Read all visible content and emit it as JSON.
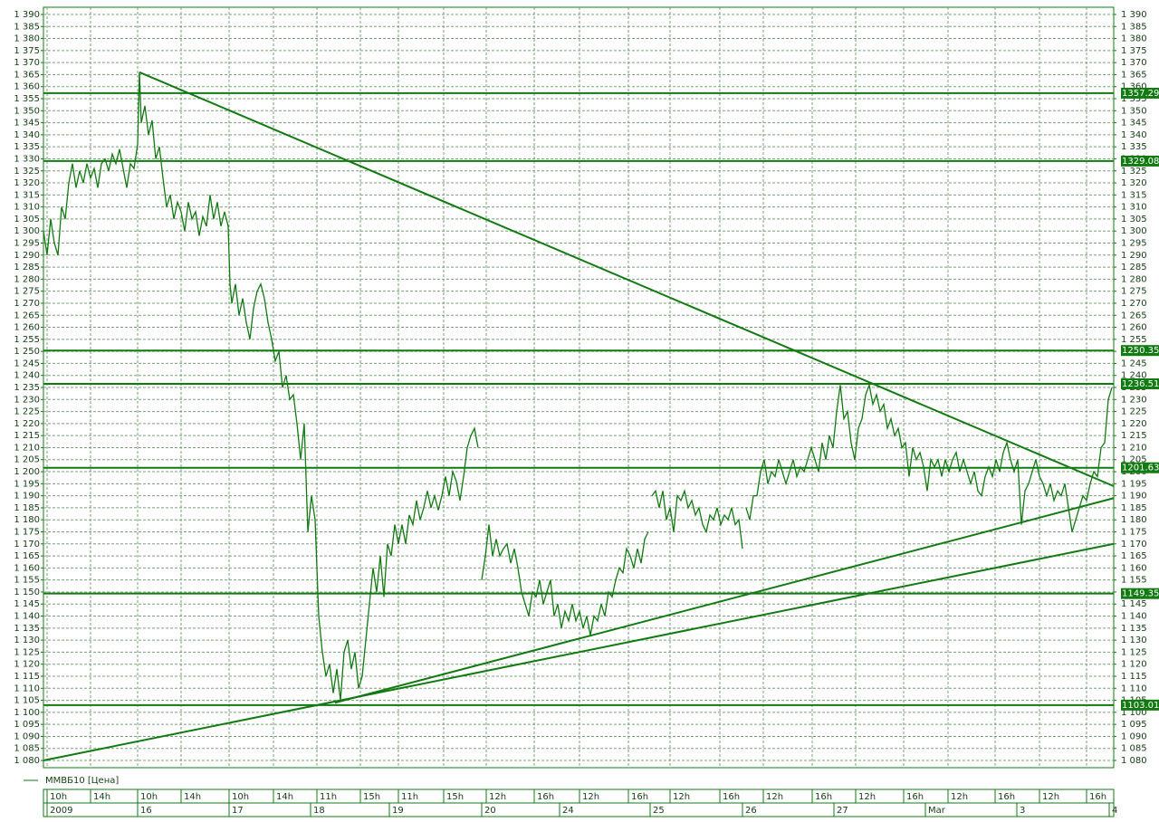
{
  "chart_data": {
    "type": "line",
    "color": "#117a11",
    "grid": true,
    "series": [
      {
        "name": "ММВБ10 [Цена]",
        "color": "#117a11",
        "x": [
          0,
          1,
          2,
          3,
          4,
          5,
          6,
          7,
          8,
          9,
          10,
          11,
          12,
          13,
          14,
          15,
          16,
          17,
          18,
          19,
          20,
          21,
          22,
          23,
          24,
          25,
          26,
          26.5,
          27,
          28,
          29,
          30,
          31,
          32,
          33,
          34,
          35,
          36,
          37,
          38,
          39,
          40,
          41,
          42,
          43,
          44,
          45,
          46,
          47,
          48,
          49,
          50,
          51,
          51.5,
          52,
          53,
          54,
          55,
          56,
          57,
          58,
          59,
          60,
          61,
          62,
          63,
          64,
          65,
          66,
          67,
          68,
          69,
          70,
          71,
          72,
          73,
          74,
          75,
          76,
          77,
          78,
          79,
          80,
          81,
          82,
          83,
          84,
          85,
          86,
          87,
          88,
          89,
          90,
          91,
          92,
          93,
          94,
          95,
          96,
          97,
          98,
          99,
          100,
          101,
          102,
          103,
          104,
          105,
          106,
          107,
          108,
          109,
          110,
          111,
          112,
          113,
          114,
          115,
          116,
          117,
          118,
          119,
          120,
          120.5,
          121,
          122,
          123,
          124,
          125,
          126,
          127,
          128,
          129,
          130,
          131,
          132,
          133,
          134,
          135,
          136,
          137,
          138,
          139,
          140,
          141,
          142,
          143,
          144,
          145,
          146,
          147,
          148,
          149,
          150,
          151,
          152,
          153,
          154,
          155,
          156,
          157,
          158,
          159,
          160,
          161,
          162,
          163,
          164,
          165,
          166,
          167,
          167.5,
          168,
          169,
          170,
          171,
          172,
          173,
          174,
          175,
          176,
          177,
          178,
          179,
          180,
          181,
          182,
          183,
          184,
          185,
          186,
          187,
          188,
          189,
          190,
          191,
          192,
          193,
          193.5,
          194,
          195,
          196,
          197,
          198,
          199,
          200,
          201,
          202,
          203,
          204,
          205,
          206,
          207,
          208,
          209,
          210,
          211,
          212,
          213,
          214,
          215,
          216,
          217,
          218,
          219,
          220,
          221,
          222,
          223,
          224,
          225,
          226,
          227,
          228,
          229,
          230,
          231,
          232,
          233,
          234,
          235,
          236,
          237,
          238,
          239,
          240,
          241,
          242,
          243,
          244,
          245,
          246,
          247,
          248,
          249,
          250,
          251,
          252,
          253,
          254,
          255,
          256,
          257,
          258,
          259,
          260,
          261,
          262,
          263,
          264,
          265,
          266,
          267,
          268,
          269,
          270,
          271,
          272,
          273,
          274,
          275,
          276,
          277,
          278,
          279,
          280,
          281,
          282,
          283,
          284,
          285,
          286,
          287,
          288,
          289,
          290,
          291,
          292,
          293,
          294,
          295
        ],
        "values": [
          1300,
          1290,
          1305,
          1295,
          1290,
          1310,
          1305,
          1320,
          1328,
          1318,
          1325,
          1320,
          1328,
          1322,
          1326,
          1318,
          1328,
          1330,
          1325,
          1332,
          1328,
          1334,
          1326,
          1318,
          1328,
          1326,
          1336,
          1366,
          1345,
          1352,
          1340,
          1346,
          1330,
          1335,
          1322,
          1310,
          1315,
          1305,
          1312,
          1308,
          1300,
          1312,
          1305,
          1308,
          1298,
          1306,
          1302,
          1315,
          1305,
          1312,
          1302,
          1308,
          1302,
          1278,
          1270,
          1278,
          1265,
          1272,
          1262,
          1255,
          1268,
          1275,
          1278,
          1272,
          1262,
          1255,
          1246,
          1250,
          1235,
          1240,
          1230,
          1232,
          1220,
          1205,
          1220,
          1175,
          1190,
          1180,
          1140,
          1125,
          1115,
          1120,
          1108,
          1118,
          1105,
          1125,
          1130,
          1118,
          1125,
          1110,
          1115,
          1130,
          1145,
          1160,
          1150,
          1165,
          1148,
          1170,
          1165,
          1178,
          1170,
          1178,
          1170,
          1182,
          1178,
          1188,
          1180,
          1185,
          1192,
          1185,
          1190,
          1184,
          1190,
          1198,
          1190,
          1200,
          1196,
          1188,
          1198,
          1210,
          1215,
          1218,
          1210,
          null,
          1155,
          1165,
          1178,
          1165,
          1172,
          1165,
          1168,
          1170,
          1162,
          1168,
          1160,
          1150,
          1145,
          1140,
          1150,
          1148,
          1155,
          1145,
          1150,
          1155,
          1140,
          1145,
          1135,
          1142,
          1138,
          1145,
          1138,
          1142,
          1135,
          1140,
          1132,
          1140,
          1138,
          1145,
          1140,
          1150,
          1148,
          1155,
          1160,
          1158,
          1168,
          1165,
          1160,
          1168,
          1162,
          1172,
          1175,
          null,
          1190,
          1192,
          1185,
          1192,
          1180,
          1185,
          1175,
          1190,
          1188,
          1192,
          1185,
          1188,
          1182,
          1185,
          1178,
          1175,
          1182,
          1180,
          1185,
          1178,
          1182,
          1180,
          1185,
          1178,
          1180,
          1168,
          null,
          1185,
          1180,
          1190,
          1190,
          1200,
          1205,
          1195,
          1200,
          1198,
          1205,
          1200,
          1195,
          1200,
          1205,
          1198,
          1202,
          1200,
          1205,
          1210,
          1205,
          1200,
          1212,
          1205,
          1215,
          1210,
          1225,
          1236,
          1222,
          1225,
          1212,
          1205,
          1218,
          1222,
          1232,
          1236,
          1228,
          1232,
          1225,
          1228,
          1218,
          1222,
          1215,
          1218,
          1210,
          1212,
          1198,
          1210,
          1205,
          1208,
          1202,
          1192,
          1205,
          1202,
          1205,
          1198,
          1205,
          1200,
          1205,
          1208,
          1200,
          1205,
          1200,
          1195,
          1200,
          1192,
          1190,
          1198,
          1202,
          1198,
          1205,
          1200,
          1208,
          1212,
          1205,
          1200,
          1205,
          1178,
          1192,
          1195,
          1200,
          1205,
          1198,
          1195,
          1190,
          1195,
          1188,
          1192,
          1190,
          1195,
          1185,
          1175,
          1180,
          1185,
          1190,
          1188,
          1195,
          1200,
          1198,
          1210,
          1212,
          1230,
          1235
        ]
      }
    ],
    "trendlines": [
      {
        "x": [
          26.5,
          295.5
        ],
        "y": [
          1366,
          1194
        ]
      },
      {
        "x": [
          0,
          295.5
        ],
        "y": [
          1080,
          1170
        ]
      },
      {
        "x": [
          80.5,
          295.5
        ],
        "y": [
          1104,
          1189
        ]
      }
    ],
    "levels": [
      1357.29,
      1329.08,
      1250.35,
      1236.51,
      1201.63,
      1149.35,
      1103.01
    ],
    "xlim": [
      0,
      295.5
    ],
    "ylim": [
      1077,
      1393
    ],
    "xticks": [
      {
        "value": 1,
        "label": "10h"
      },
      {
        "value": 13,
        "label": "14h"
      },
      {
        "value": 26,
        "label": "10h"
      },
      {
        "value": 38,
        "label": "14h"
      },
      {
        "value": 51.25,
        "label": "10h"
      },
      {
        "value": 63.5,
        "label": "14h"
      },
      {
        "value": 75.5,
        "label": "11h"
      },
      {
        "value": 87.5,
        "label": "15h"
      },
      {
        "value": 98,
        "label": "11h"
      },
      {
        "value": 110.5,
        "label": "15h"
      },
      {
        "value": 122.25,
        "label": "12h"
      },
      {
        "value": 135.5,
        "label": "16h"
      },
      {
        "value": 148,
        "label": "12h"
      },
      {
        "value": 161.5,
        "label": "16h"
      },
      {
        "value": 173,
        "label": "12h"
      },
      {
        "value": 186.75,
        "label": "16h"
      },
      {
        "value": 198.75,
        "label": "12h"
      },
      {
        "value": 212.25,
        "label": "16h"
      },
      {
        "value": 224.25,
        "label": "12h"
      },
      {
        "value": 237.5,
        "label": "16h"
      },
      {
        "value": 249.75,
        "label": "12h"
      },
      {
        "value": 262.75,
        "label": "16h"
      },
      {
        "value": 275,
        "label": "12h"
      },
      {
        "value": 288,
        "label": "16h"
      }
    ],
    "dateticks": [
      {
        "value": 1,
        "label": "2009"
      },
      {
        "value": 26,
        "label": "16"
      },
      {
        "value": 51.25,
        "label": "17"
      },
      {
        "value": 73.75,
        "label": "18"
      },
      {
        "value": 95.5,
        "label": "19"
      },
      {
        "value": 121,
        "label": "20"
      },
      {
        "value": 142.5,
        "label": "24"
      },
      {
        "value": 167.5,
        "label": "25"
      },
      {
        "value": 193,
        "label": "26"
      },
      {
        "value": 218.25,
        "label": "27"
      },
      {
        "value": 243.5,
        "label": "Mar"
      },
      {
        "value": 268.75,
        "label": "3"
      },
      {
        "value": 294.25,
        "label": "4"
      }
    ],
    "yticks": [
      {
        "value": 1080,
        "label": "1 080"
      },
      {
        "value": 1085,
        "label": "1 085"
      },
      {
        "value": 1090,
        "label": "1 090"
      },
      {
        "value": 1095,
        "label": "1 095"
      },
      {
        "value": 1100,
        "label": "1 100"
      },
      {
        "value": 1105,
        "label": "1 105"
      },
      {
        "value": 1110,
        "label": "1 110"
      },
      {
        "value": 1115,
        "label": "1 115"
      },
      {
        "value": 1120,
        "label": "1 120"
      },
      {
        "value": 1125,
        "label": "1 125"
      },
      {
        "value": 1130,
        "label": "1 130"
      },
      {
        "value": 1135,
        "label": "1 135"
      },
      {
        "value": 1140,
        "label": "1 140"
      },
      {
        "value": 1145,
        "label": "1 145"
      },
      {
        "value": 1150,
        "label": "1 150"
      },
      {
        "value": 1155,
        "label": "1 155"
      },
      {
        "value": 1160,
        "label": "1 160"
      },
      {
        "value": 1165,
        "label": "1 165"
      },
      {
        "value": 1170,
        "label": "1 170"
      },
      {
        "value": 1175,
        "label": "1 175"
      },
      {
        "value": 1180,
        "label": "1 180"
      },
      {
        "value": 1185,
        "label": "1 185"
      },
      {
        "value": 1190,
        "label": "1 190"
      },
      {
        "value": 1195,
        "label": "1 195"
      },
      {
        "value": 1200,
        "label": "1 200"
      },
      {
        "value": 1205,
        "label": "1 205"
      },
      {
        "value": 1210,
        "label": "1 210"
      },
      {
        "value": 1215,
        "label": "1 215"
      },
      {
        "value": 1220,
        "label": "1 220"
      },
      {
        "value": 1225,
        "label": "1 225"
      },
      {
        "value": 1230,
        "label": "1 230"
      },
      {
        "value": 1235,
        "label": "1 235"
      },
      {
        "value": 1240,
        "label": "1 240"
      },
      {
        "value": 1245,
        "label": "1 245"
      },
      {
        "value": 1250,
        "label": "1 250"
      },
      {
        "value": 1255,
        "label": "1 255"
      },
      {
        "value": 1260,
        "label": "1 260"
      },
      {
        "value": 1265,
        "label": "1 265"
      },
      {
        "value": 1270,
        "label": "1 270"
      },
      {
        "value": 1275,
        "label": "1 275"
      },
      {
        "value": 1280,
        "label": "1 280"
      },
      {
        "value": 1285,
        "label": "1 285"
      },
      {
        "value": 1290,
        "label": "1 290"
      },
      {
        "value": 1295,
        "label": "1 295"
      },
      {
        "value": 1300,
        "label": "1 300"
      },
      {
        "value": 1305,
        "label": "1 305"
      },
      {
        "value": 1310,
        "label": "1 310"
      },
      {
        "value": 1315,
        "label": "1 315"
      },
      {
        "value": 1320,
        "label": "1 320"
      },
      {
        "value": 1325,
        "label": "1 325"
      },
      {
        "value": 1330,
        "label": "1 330"
      },
      {
        "value": 1335,
        "label": "1 335"
      },
      {
        "value": 1340,
        "label": "1 340"
      },
      {
        "value": 1345,
        "label": "1 345"
      },
      {
        "value": 1350,
        "label": "1 350"
      },
      {
        "value": 1355,
        "label": "1 355"
      },
      {
        "value": 1360,
        "label": "1 360"
      },
      {
        "value": 1365,
        "label": "1 365"
      },
      {
        "value": 1370,
        "label": "1 370"
      },
      {
        "value": 1375,
        "label": "1 375"
      },
      {
        "value": 1380,
        "label": "1 380"
      },
      {
        "value": 1385,
        "label": "1 385"
      },
      {
        "value": 1390,
        "label": "1 390"
      }
    ]
  }
}
